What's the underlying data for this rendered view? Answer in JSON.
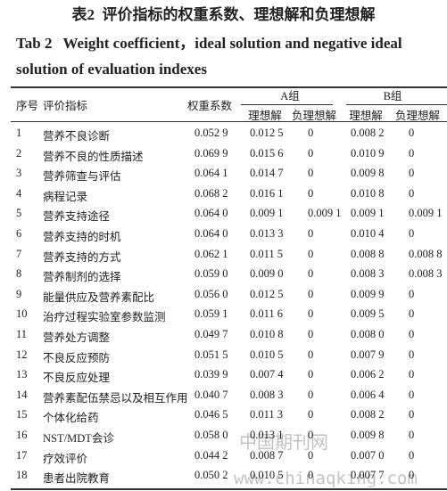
{
  "caption": {
    "cn_label": "表2",
    "cn_title": "评价指标的权重系数、理想解和负理想解",
    "en_label": "Tab 2",
    "en_title": "Weight coefficient，ideal solution and negative ideal solution of evaluation indexes"
  },
  "table": {
    "header": {
      "no": "序号",
      "index": "评价指标",
      "weight": "权重系数",
      "group_a": "A组",
      "group_b": "B组",
      "ideal": "理想解",
      "negative": "负理想解"
    },
    "rows": [
      [
        "1",
        "营养不良诊断",
        "0.052 9",
        "0.012 5",
        "0",
        "0.008 2",
        "0"
      ],
      [
        "2",
        "营养不良的性质描述",
        "0.069 9",
        "0.015 6",
        "0",
        "0.010 9",
        "0"
      ],
      [
        "3",
        "营养筛查与评估",
        "0.064 1",
        "0.014 7",
        "0",
        "0.009 8",
        "0"
      ],
      [
        "4",
        "病程记录",
        "0.068 2",
        "0.016 1",
        "0",
        "0.010 8",
        "0"
      ],
      [
        "5",
        "营养支持途径",
        "0.064 0",
        "0.009 1",
        "0.009 1",
        "0.009 1",
        "0.009 1"
      ],
      [
        "6",
        "营养支持的时机",
        "0.064 0",
        "0.013 3",
        "0",
        "0.010 4",
        "0"
      ],
      [
        "7",
        "营养支持的方式",
        "0.062 1",
        "0.011 5",
        "0",
        "0.008 8",
        "0.008 8"
      ],
      [
        "8",
        "营养制剂的选择",
        "0.059 0",
        "0.009 0",
        "0",
        "0.008 3",
        "0.008 3"
      ],
      [
        "9",
        "能量供应及营养素配比",
        "0.056 0",
        "0.012 5",
        "0",
        "0.009 9",
        "0"
      ],
      [
        "10",
        "治疗过程实验室参数监测",
        "0.059 1",
        "0.011 6",
        "0",
        "0.009 5",
        "0"
      ],
      [
        "11",
        "营养处方调整",
        "0.049 7",
        "0.010 8",
        "0",
        "0.008 0",
        "0"
      ],
      [
        "12",
        "不良反应预防",
        "0.051 5",
        "0.010 5",
        "0",
        "0.007 9",
        "0"
      ],
      [
        "13",
        "不良反应处理",
        "0.039 9",
        "0.007 4",
        "0",
        "0.006 2",
        "0"
      ],
      [
        "14",
        "营养素配伍禁忌以及相互作用",
        "0.040 7",
        "0.008 3",
        "0",
        "0.006 4",
        "0"
      ],
      [
        "15",
        "个体化给药",
        "0.046 5",
        "0.011 3",
        "0",
        "0.008 2",
        "0"
      ],
      [
        "16",
        "NST/MDT会诊",
        "0.058 0",
        "0.013 1",
        "0",
        "0.009 8",
        "0"
      ],
      [
        "17",
        "疗效评价",
        "0.044 2",
        "0.008 7",
        "0",
        "0.007 0",
        "0"
      ],
      [
        "18",
        "患者出院教育",
        "0.050 2",
        "0.010 5",
        "0",
        "0.007 7",
        "0"
      ]
    ]
  },
  "watermark": {
    "cn": "中国期刊网",
    "url": "www.chinaqking.com"
  }
}
